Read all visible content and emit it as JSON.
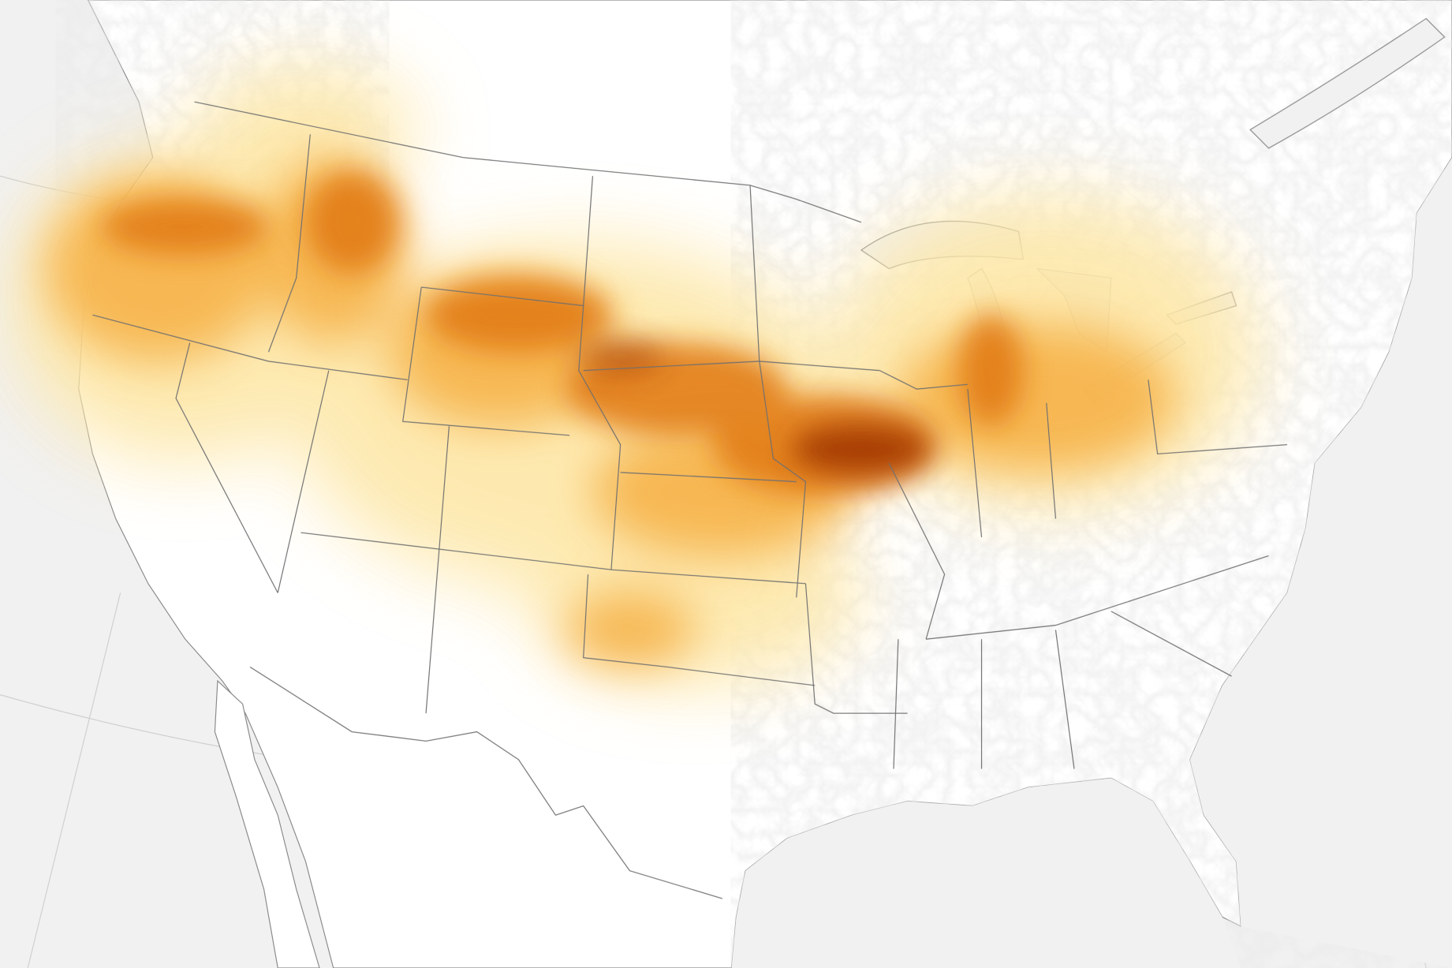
{
  "map": {
    "colors": {
      "ocean": "#f1f1f1",
      "land": "#ffffff",
      "border": "#6e6e6e",
      "smoke_light": "#fde7a8",
      "smoke_medium": "#f6b24a",
      "smoke_heavy": "#e27d14",
      "smoke_extreme": "#a23800"
    }
  }
}
